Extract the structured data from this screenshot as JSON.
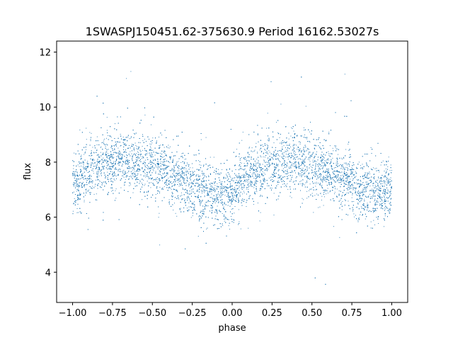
{
  "chart_data": {
    "type": "scatter",
    "title": "1SWASPJ150451.62-375630.9 Period 16162.53027s",
    "xlabel": "phase",
    "ylabel": "flux",
    "xlim": [
      -1.1,
      1.1
    ],
    "ylim": [
      2.9,
      12.4
    ],
    "x_ticks": [
      -1.0,
      -0.75,
      -0.5,
      -0.25,
      0.0,
      0.25,
      0.5,
      0.75,
      1.0
    ],
    "x_tick_labels": [
      "−1.00",
      "−0.75",
      "−0.50",
      "−0.25",
      "0.00",
      "0.25",
      "0.50",
      "0.75",
      "1.00"
    ],
    "y_ticks": [
      4,
      6,
      8,
      10,
      12
    ],
    "y_tick_labels": [
      "4",
      "6",
      "8",
      "10",
      "12"
    ],
    "grid": false,
    "legend": "none",
    "marker_color": "#1f77b4",
    "series": [
      {
        "x": [
          -1.0,
          -0.95,
          -0.9,
          -0.85,
          -0.8,
          -0.75,
          -0.7,
          -0.65,
          -0.6,
          -0.55,
          -0.5,
          -0.45,
          -0.4,
          -0.35,
          -0.3,
          -0.25,
          -0.2,
          -0.15,
          -0.1,
          -0.05,
          0.0,
          0.05,
          0.1,
          0.15,
          0.2,
          0.25,
          0.3,
          0.35,
          0.4,
          0.45,
          0.5,
          0.55,
          0.6,
          0.65,
          0.7,
          0.75,
          0.8,
          0.85,
          0.9,
          0.95,
          1.0
        ],
        "y": [
          7.2,
          7.4,
          7.6,
          7.8,
          7.95,
          8.05,
          8.1,
          8.1,
          8.05,
          7.95,
          7.85,
          7.75,
          7.6,
          7.45,
          7.3,
          7.15,
          7.0,
          6.85,
          6.75,
          6.8,
          6.95,
          7.2,
          7.45,
          7.65,
          7.8,
          7.9,
          7.95,
          8.0,
          8.0,
          7.95,
          7.9,
          7.8,
          7.7,
          7.55,
          7.4,
          7.25,
          7.05,
          6.9,
          6.85,
          6.9,
          7.0
        ],
        "scatter_sd": 0.55
      }
    ]
  }
}
